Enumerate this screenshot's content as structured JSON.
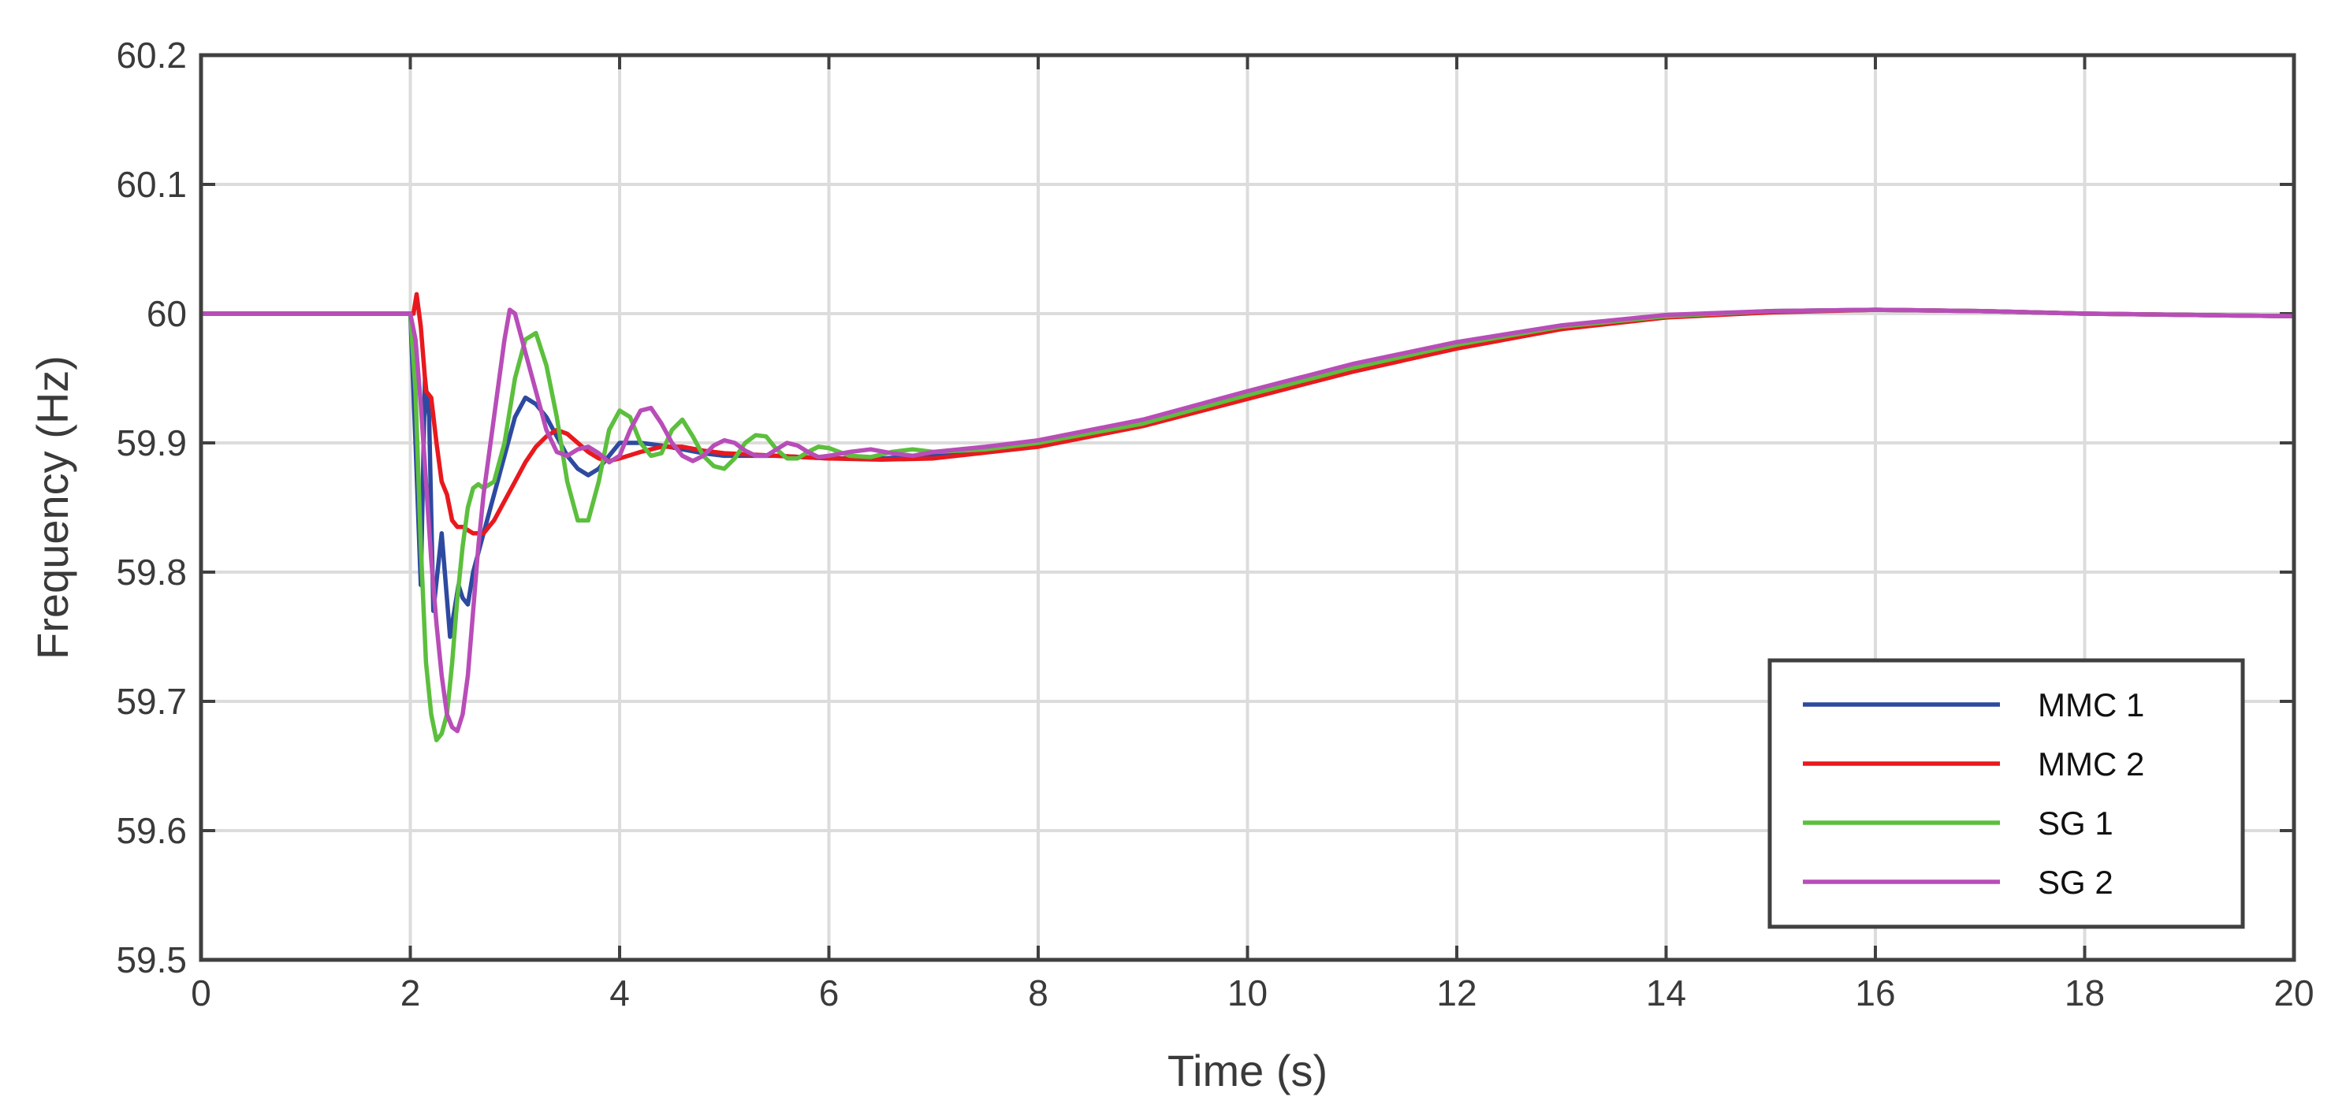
{
  "chart_data": {
    "type": "line",
    "title": "",
    "xlabel": "Time (s)",
    "ylabel": "Frequency (Hz)",
    "xlim": [
      0,
      20
    ],
    "ylim": [
      59.5,
      60.2
    ],
    "xticks": [
      0,
      2,
      4,
      6,
      8,
      10,
      12,
      14,
      16,
      18,
      20
    ],
    "yticks": [
      59.5,
      59.6,
      59.7,
      59.8,
      59.9,
      60,
      60.1,
      60.2
    ],
    "xtick_labels": [
      "0",
      "2",
      "4",
      "6",
      "8",
      "10",
      "12",
      "14",
      "16",
      "18",
      "20"
    ],
    "ytick_labels": [
      "59.5",
      "59.6",
      "59.7",
      "59.8",
      "59.9",
      "60",
      "60.1",
      "60.2"
    ],
    "grid": true,
    "legend_position": "bottom-right",
    "series": [
      {
        "name": "MMC 1",
        "color": "#2d4aa0",
        "x": [
          0,
          2.0,
          2.05,
          2.1,
          2.14,
          2.18,
          2.22,
          2.26,
          2.3,
          2.34,
          2.38,
          2.42,
          2.46,
          2.5,
          2.55,
          2.6,
          2.7,
          2.8,
          2.9,
          3.0,
          3.1,
          3.2,
          3.3,
          3.4,
          3.5,
          3.6,
          3.7,
          3.8,
          3.9,
          4.0,
          4.2,
          4.4,
          4.6,
          4.8,
          5.0,
          5.5,
          6.0,
          6.5,
          7.0,
          8.0,
          9.0,
          10.0,
          11.0,
          12.0,
          13.0,
          14.0,
          15.0,
          16.0,
          17.0,
          18.0,
          19.0,
          20.0
        ],
        "y": [
          60.0,
          60.0,
          59.9,
          59.79,
          59.95,
          59.92,
          59.77,
          59.8,
          59.83,
          59.79,
          59.75,
          59.77,
          59.79,
          59.78,
          59.775,
          59.8,
          59.83,
          59.86,
          59.89,
          59.92,
          59.935,
          59.93,
          59.92,
          59.905,
          59.89,
          59.88,
          59.875,
          59.88,
          59.89,
          59.9,
          59.9,
          59.898,
          59.895,
          59.892,
          59.89,
          59.89,
          59.888,
          59.888,
          59.89,
          59.9,
          59.915,
          59.937,
          59.958,
          59.976,
          59.99,
          59.998,
          60.002,
          60.003,
          60.002,
          60.0,
          59.999,
          59.998
        ]
      },
      {
        "name": "MMC 2",
        "color": "#e8191e",
        "x": [
          0,
          2.0,
          2.03,
          2.06,
          2.1,
          2.15,
          2.2,
          2.25,
          2.3,
          2.35,
          2.4,
          2.45,
          2.5,
          2.6,
          2.7,
          2.8,
          2.9,
          3.0,
          3.1,
          3.2,
          3.3,
          3.4,
          3.5,
          3.6,
          3.7,
          3.8,
          3.9,
          4.0,
          4.2,
          4.4,
          4.6,
          4.8,
          5.0,
          5.5,
          6.0,
          6.5,
          7.0,
          8.0,
          9.0,
          10.0,
          11.0,
          12.0,
          13.0,
          14.0,
          15.0,
          16.0,
          17.0,
          18.0,
          19.0,
          20.0
        ],
        "y": [
          60.0,
          60.0,
          60.0,
          60.015,
          59.99,
          59.94,
          59.935,
          59.9,
          59.87,
          59.86,
          59.84,
          59.835,
          59.835,
          59.83,
          59.83,
          59.84,
          59.855,
          59.87,
          59.885,
          59.897,
          59.905,
          59.91,
          59.907,
          59.9,
          59.893,
          59.888,
          59.886,
          59.888,
          59.893,
          59.897,
          59.897,
          59.894,
          59.892,
          59.89,
          59.888,
          59.887,
          59.888,
          59.897,
          59.913,
          59.934,
          59.955,
          59.973,
          59.988,
          59.997,
          60.001,
          60.003,
          60.002,
          60.0,
          59.999,
          59.998
        ]
      },
      {
        "name": "SG 1",
        "color": "#5cbf3d",
        "x": [
          0,
          2.0,
          2.05,
          2.1,
          2.15,
          2.2,
          2.25,
          2.3,
          2.35,
          2.4,
          2.45,
          2.5,
          2.55,
          2.6,
          2.65,
          2.7,
          2.8,
          2.9,
          3.0,
          3.1,
          3.2,
          3.3,
          3.4,
          3.5,
          3.6,
          3.7,
          3.8,
          3.9,
          4.0,
          4.1,
          4.2,
          4.3,
          4.4,
          4.5,
          4.6,
          4.7,
          4.8,
          4.9,
          5.0,
          5.1,
          5.2,
          5.3,
          5.4,
          5.5,
          5.6,
          5.7,
          5.8,
          5.9,
          6.0,
          6.2,
          6.4,
          6.6,
          6.8,
          7.0,
          7.5,
          8.0,
          9.0,
          10.0,
          11.0,
          12.0,
          13.0,
          14.0,
          15.0,
          16.0,
          17.0,
          18.0,
          19.0,
          20.0
        ],
        "y": [
          60.0,
          60.0,
          59.94,
          59.82,
          59.73,
          59.69,
          59.67,
          59.675,
          59.69,
          59.73,
          59.78,
          59.82,
          59.85,
          59.865,
          59.868,
          59.865,
          59.87,
          59.9,
          59.95,
          59.98,
          59.985,
          59.96,
          59.92,
          59.87,
          59.84,
          59.84,
          59.87,
          59.91,
          59.925,
          59.92,
          59.9,
          59.89,
          59.892,
          59.91,
          59.918,
          59.905,
          59.89,
          59.882,
          59.88,
          59.888,
          59.9,
          59.906,
          59.905,
          59.895,
          59.888,
          59.888,
          59.893,
          59.897,
          59.896,
          59.89,
          59.889,
          59.893,
          59.895,
          59.893,
          59.895,
          59.9,
          59.915,
          59.937,
          59.958,
          59.976,
          59.99,
          59.998,
          60.002,
          60.003,
          60.002,
          60.0,
          59.999,
          59.998
        ]
      },
      {
        "name": "SG 2",
        "color": "#b84db8",
        "x": [
          0,
          2.0,
          2.05,
          2.1,
          2.15,
          2.2,
          2.25,
          2.3,
          2.35,
          2.4,
          2.45,
          2.5,
          2.55,
          2.6,
          2.65,
          2.7,
          2.8,
          2.9,
          2.95,
          3.0,
          3.1,
          3.2,
          3.3,
          3.4,
          3.5,
          3.6,
          3.7,
          3.8,
          3.9,
          4.0,
          4.1,
          4.2,
          4.3,
          4.4,
          4.5,
          4.6,
          4.7,
          4.8,
          4.9,
          5.0,
          5.1,
          5.2,
          5.3,
          5.4,
          5.5,
          5.6,
          5.7,
          5.8,
          5.9,
          6.0,
          6.2,
          6.4,
          6.6,
          6.8,
          7.0,
          7.5,
          8.0,
          9.0,
          10.0,
          11.0,
          12.0,
          13.0,
          14.0,
          15.0,
          16.0,
          17.0,
          18.0,
          19.0,
          20.0
        ],
        "y": [
          60.0,
          60.0,
          59.98,
          59.93,
          59.87,
          59.81,
          59.76,
          59.72,
          59.69,
          59.68,
          59.677,
          59.69,
          59.72,
          59.77,
          59.82,
          59.86,
          59.92,
          59.98,
          60.003,
          60.0,
          59.97,
          59.94,
          59.91,
          59.893,
          59.89,
          59.895,
          59.897,
          59.892,
          59.885,
          59.89,
          59.91,
          59.925,
          59.927,
          59.915,
          59.9,
          59.89,
          59.886,
          59.89,
          59.898,
          59.902,
          59.9,
          59.894,
          59.89,
          59.89,
          59.895,
          59.9,
          59.898,
          59.893,
          59.889,
          59.89,
          59.893,
          59.895,
          59.892,
          59.89,
          59.893,
          59.897,
          59.902,
          59.918,
          59.94,
          59.961,
          59.978,
          59.991,
          59.999,
          60.002,
          60.003,
          60.002,
          60.0,
          59.999,
          59.998
        ]
      }
    ]
  }
}
